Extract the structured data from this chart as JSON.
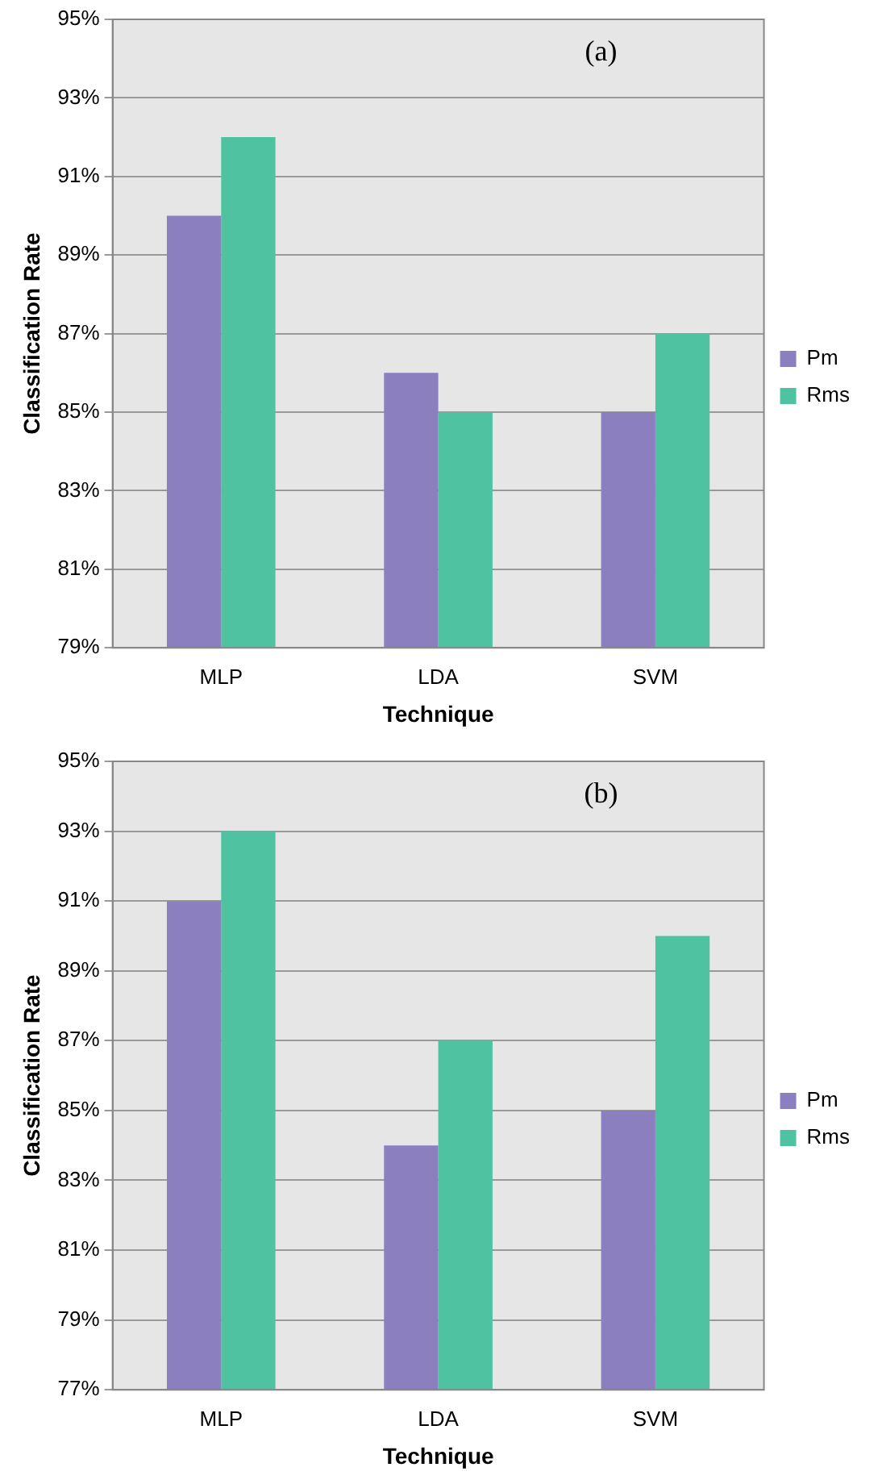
{
  "chart_data": [
    {
      "type": "bar",
      "ylabel": "Classification Rate",
      "xlabel": "Technique",
      "categories": [
        "MLP",
        "LDA",
        "SVM"
      ],
      "series": [
        {
          "name": "Pm",
          "color": "#8c7fc0",
          "values": [
            90,
            86,
            85
          ]
        },
        {
          "name": "Rms",
          "color": "#4fc3a1",
          "values": [
            92,
            85,
            87
          ]
        }
      ],
      "ylim": [
        79,
        95
      ],
      "yticks": [
        {
          "value": 79,
          "label": "79%"
        },
        {
          "value": 81,
          "label": "81%"
        },
        {
          "value": 83,
          "label": "83%"
        },
        {
          "value": 85,
          "label": "85%"
        },
        {
          "value": 87,
          "label": "87%"
        },
        {
          "value": 89,
          "label": "89%"
        },
        {
          "value": 91,
          "label": "91%"
        },
        {
          "value": 93,
          "label": "93%"
        },
        {
          "value": 95,
          "label": "95%"
        }
      ],
      "grid": "y",
      "legend": "right",
      "annotations": [
        "(a)"
      ]
    },
    {
      "type": "bar",
      "ylabel": "Classification Rate",
      "xlabel": "Technique",
      "categories": [
        "MLP",
        "LDA",
        "SVM"
      ],
      "series": [
        {
          "name": "Pm",
          "color": "#8c7fc0",
          "values": [
            91,
            84,
            85
          ]
        },
        {
          "name": "Rms",
          "color": "#4fc3a1",
          "values": [
            93,
            87,
            90
          ]
        }
      ],
      "ylim": [
        77,
        95
      ],
      "yticks": [
        {
          "value": 77,
          "label": "77%"
        },
        {
          "value": 79,
          "label": "79%"
        },
        {
          "value": 81,
          "label": "81%"
        },
        {
          "value": 83,
          "label": "83%"
        },
        {
          "value": 85,
          "label": "85%"
        },
        {
          "value": 87,
          "label": "87%"
        },
        {
          "value": 89,
          "label": "89%"
        },
        {
          "value": 91,
          "label": "91%"
        },
        {
          "value": 93,
          "label": "93%"
        },
        {
          "value": 95,
          "label": "95%"
        }
      ],
      "grid": "y",
      "legend": "right",
      "annotations": [
        "(b)"
      ]
    }
  ]
}
